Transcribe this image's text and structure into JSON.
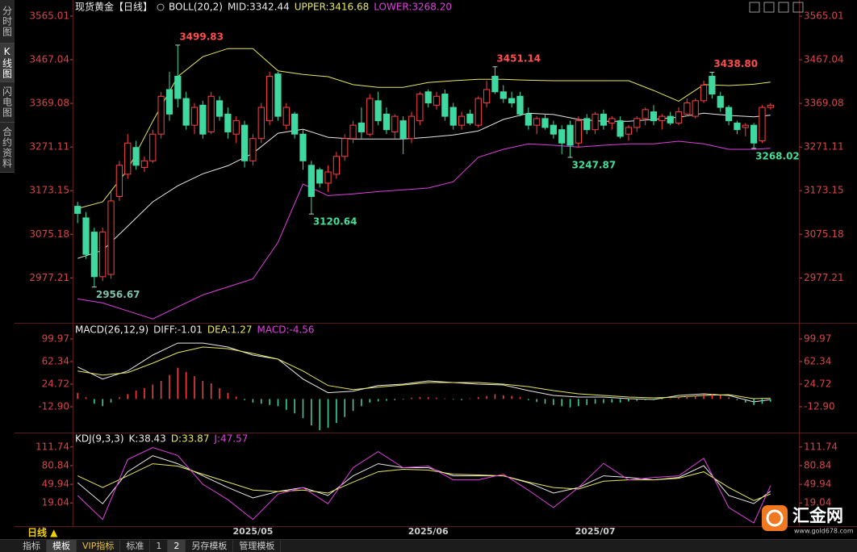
{
  "sidebar": [
    "分时图",
    "K线图",
    "闪电图",
    "合约资料"
  ],
  "toolbar": {
    "period": "日线 ▲",
    "items": [
      "指标",
      "模板",
      "VIP指标",
      "标准",
      "1",
      "2",
      "另存模板",
      "管理模板"
    ]
  },
  "logo": {
    "name": "汇金网",
    "url": "www.gold678.com"
  },
  "chart_data": [
    {
      "type": "candlestick",
      "title": "现货黄金【日线】",
      "indicator": "BOLL(20,2)",
      "up_color": "#ff4040",
      "down_color": "#3fd8a0",
      "xlim": [
        -0.5,
        83.5
      ],
      "ylim": [
        2880,
        3583
      ],
      "yticks": [
        3565.01,
        3467.04,
        3369.08,
        3271.11,
        3173.15,
        3075.18,
        2977.21
      ],
      "open": [
        3138,
        3112,
        3080,
        2980,
        2985,
        3160,
        3210,
        3270,
        3225,
        3240,
        3300,
        3400,
        3430,
        3380,
        3320,
        3365,
        3305,
        3375,
        3345,
        3300,
        3320,
        3240,
        3290,
        3330,
        3435,
        3320,
        3345,
        3300,
        3230,
        3220,
        3190,
        3210,
        3250,
        3290,
        3325,
        3300,
        3375,
        3345,
        3305,
        3330,
        3290,
        3330,
        3395,
        3365,
        3390,
        3360,
        3320,
        3345,
        3320,
        3370,
        3430,
        3395,
        3380,
        3385,
        3345,
        3320,
        3335,
        3320,
        3310,
        3320,
        3280,
        3335,
        3310,
        3345,
        3325,
        3330,
        3300,
        3315,
        3335,
        3350,
        3330,
        3340,
        3325,
        3345,
        3340,
        3375,
        3430,
        3385,
        3360,
        3325,
        3315,
        3320,
        3285,
        3360
      ],
      "high": [
        3148,
        3125,
        3090,
        3090,
        3170,
        3240,
        3300,
        3285,
        3250,
        3310,
        3395,
        3440,
        3499.83,
        3395,
        3370,
        3375,
        3395,
        3385,
        3360,
        3340,
        3330,
        3300,
        3370,
        3440,
        3440,
        3370,
        3350,
        3310,
        3240,
        3225,
        3230,
        3260,
        3300,
        3330,
        3360,
        3390,
        3395,
        3360,
        3345,
        3340,
        3350,
        3395,
        3400,
        3395,
        3400,
        3370,
        3350,
        3355,
        3385,
        3420,
        3451.14,
        3410,
        3395,
        3395,
        3360,
        3340,
        3345,
        3330,
        3320,
        3330,
        3340,
        3345,
        3350,
        3355,
        3340,
        3340,
        3320,
        3340,
        3360,
        3365,
        3345,
        3350,
        3360,
        3380,
        3380,
        3420,
        3438.8,
        3395,
        3365,
        3330,
        3325,
        3325,
        3365,
        3370
      ],
      "low": [
        3100,
        3020,
        2956.67,
        2970,
        2975,
        3150,
        3200,
        3220,
        3215,
        3235,
        3290,
        3330,
        3360,
        3310,
        3300,
        3290,
        3300,
        3330,
        3290,
        3280,
        3225,
        3230,
        3280,
        3320,
        3330,
        3310,
        3290,
        3220,
        3120.64,
        3180,
        3170,
        3200,
        3240,
        3280,
        3290,
        3295,
        3320,
        3300,
        3290,
        3255,
        3280,
        3320,
        3360,
        3355,
        3330,
        3310,
        3310,
        3320,
        3315,
        3360,
        3390,
        3370,
        3360,
        3340,
        3310,
        3300,
        3310,
        3290,
        3255,
        3247.87,
        3270,
        3300,
        3300,
        3310,
        3310,
        3290,
        3285,
        3305,
        3320,
        3320,
        3310,
        3320,
        3320,
        3340,
        3335,
        3370,
        3380,
        3350,
        3320,
        3300,
        3295,
        3268.02,
        3280,
        3355
      ],
      "close": [
        3122,
        3030,
        2980,
        3080,
        3150,
        3230,
        3280,
        3230,
        3240,
        3300,
        3385,
        3345,
        3380,
        3320,
        3360,
        3300,
        3385,
        3340,
        3305,
        3330,
        3240,
        3290,
        3360,
        3430,
        3340,
        3360,
        3300,
        3240,
        3160,
        3190,
        3215,
        3250,
        3290,
        3320,
        3305,
        3380,
        3330,
        3310,
        3340,
        3290,
        3340,
        3390,
        3370,
        3385,
        3340,
        3320,
        3340,
        3325,
        3380,
        3400,
        3395,
        3380,
        3370,
        3345,
        3320,
        3335,
        3315,
        3300,
        3280,
        3275,
        3330,
        3310,
        3345,
        3320,
        3335,
        3295,
        3315,
        3335,
        3355,
        3330,
        3340,
        3325,
        3350,
        3370,
        3375,
        3410,
        3390,
        3360,
        3330,
        3310,
        3320,
        3280,
        3360,
        3365
      ],
      "annotations": [
        {
          "x": 12,
          "label": "3499.83",
          "color": "#ff4d4d"
        },
        {
          "x": 50,
          "label": "3451.14",
          "color": "#ff4d4d"
        },
        {
          "x": 76,
          "label": "3438.80",
          "color": "#ff4d4d"
        },
        {
          "x": 2,
          "label": "2956.67",
          "color": "#7fc0a8"
        },
        {
          "x": 28,
          "label": "3120.64",
          "color": "#44dd99"
        },
        {
          "x": 59,
          "label": "3247.87",
          "color": "#44dd99"
        },
        {
          "x": 81,
          "label": "3268.02",
          "color": "#44dd99"
        }
      ],
      "line_x": [
        0,
        3,
        6,
        9,
        12,
        15,
        18,
        21,
        24,
        27,
        30,
        33,
        36,
        39,
        42,
        45,
        48,
        51,
        54,
        57,
        60,
        63,
        66,
        69,
        72,
        75,
        78,
        81,
        83
      ],
      "series": [
        {
          "name": "MID:3342.44",
          "color": "#e8e8e8",
          "values": [
            3021,
            3039,
            3093,
            3148,
            3184,
            3211,
            3229,
            3257,
            3302,
            3311,
            3293,
            3289,
            3289,
            3289,
            3293,
            3298,
            3307,
            3333,
            3347,
            3344,
            3333,
            3329,
            3329,
            3333,
            3338,
            3347,
            3342,
            3339,
            3342.44
          ]
        },
        {
          "name": "UPPER:3416.68",
          "color": "#e8e85a",
          "values": [
            3133,
            3148,
            3220,
            3329,
            3429,
            3474,
            3492,
            3492,
            3442,
            3434,
            3429,
            3411,
            3405,
            3405,
            3416,
            3420,
            3423,
            3423,
            3421,
            3420,
            3420,
            3420,
            3420,
            3398,
            3374,
            3411,
            3409,
            3412,
            3416.68
          ]
        },
        {
          "name": "LOWER:3268.20",
          "color": "#e040e0",
          "values": [
            2930,
            2921,
            2903,
            2885,
            2912,
            2939,
            2957,
            2975,
            3057,
            3188,
            3162,
            3166,
            3171,
            3175,
            3179,
            3193,
            3248,
            3266,
            3278,
            3275,
            3271,
            3275,
            3278,
            3278,
            3284,
            3278,
            3266,
            3266,
            3268.2
          ]
        }
      ]
    },
    {
      "type": "combo",
      "title": "MACD(26,12,9)",
      "xlim": [
        -0.5,
        83.5
      ],
      "ylim": [
        -54.6,
        124.2
      ],
      "yticks": [
        99.97,
        62.34,
        24.72,
        {
          "value": -12.9,
          "label": "-12.90"
        }
      ],
      "line_x": [
        0,
        3,
        6,
        9,
        12,
        15,
        18,
        21,
        24,
        27,
        30,
        33,
        36,
        39,
        42,
        45,
        48,
        51,
        54,
        57,
        60,
        63,
        66,
        69,
        72,
        75,
        78,
        81,
        83
      ],
      "series": [
        {
          "name": "DIFF:-1.01",
          "color": "#e8e8e8",
          "style": "line",
          "values": [
            53.3,
            33.2,
            46.6,
            73.1,
            93.2,
            93.2,
            86.5,
            73.1,
            66.4,
            33.2,
            10.4,
            13,
            22.4,
            24.7,
            30.1,
            27.4,
            24.7,
            23.4,
            14,
            5.9,
            3.2,
            3.2,
            0.5,
            -0.8,
            5.9,
            8.6,
            5.9,
            -4.9,
            -1.01
          ]
        },
        {
          "name": "DEA:1.27",
          "color": "#e8e85a",
          "style": "line",
          "values": [
            46.6,
            39.9,
            43.9,
            59.7,
            77.1,
            86.5,
            83.8,
            75.8,
            66.4,
            46.6,
            22.4,
            15.7,
            19.8,
            23.4,
            27.4,
            27.4,
            27.4,
            24.7,
            20.6,
            14,
            8.6,
            5.9,
            3.2,
            1.8,
            3.2,
            5.9,
            7.2,
            0.5,
            1.27
          ]
        },
        {
          "name": "MACD:-4.56",
          "color": "#e040e0",
          "style": "bar",
          "up_color": "#ff4040",
          "down_color": "#3fd8a0",
          "values": [
            10,
            3,
            -8,
            -12,
            -6,
            3,
            8,
            14,
            18,
            24,
            30,
            40,
            52,
            45,
            38,
            30,
            26,
            18,
            10,
            4,
            -2,
            -6,
            -8,
            -10,
            -12,
            -18,
            -24,
            -32,
            -44,
            -52,
            -48,
            -40,
            -30,
            -20,
            -12,
            -6,
            -4,
            -3,
            -2,
            -1,
            2,
            3,
            3,
            2,
            1,
            -1,
            -2,
            1,
            3,
            5,
            8,
            6,
            5,
            3,
            -2,
            -5,
            -8,
            -10,
            -12,
            -14,
            -12,
            -10,
            -8,
            -7,
            -6,
            -6,
            -4,
            -3,
            -2,
            -2,
            -1,
            1,
            3,
            5,
            6,
            8,
            8,
            6,
            3,
            -2,
            -6,
            -10,
            -8,
            -4.56
          ]
        }
      ]
    },
    {
      "type": "line",
      "title": "KDJ(9,3,3)",
      "xlim": [
        -0.5,
        83.5
      ],
      "ylim": [
        -19.4,
        132.9
      ],
      "yticks": [
        111.74,
        80.84,
        49.94,
        19.04
      ],
      "xticks": [
        {
          "value": 21,
          "label": "2025/05"
        },
        {
          "value": 42,
          "label": "2025/06"
        },
        {
          "value": 62,
          "label": "2025/07"
        }
      ],
      "line_x": [
        0,
        3,
        6,
        9,
        12,
        15,
        18,
        21,
        24,
        27,
        30,
        33,
        36,
        39,
        42,
        45,
        48,
        51,
        54,
        57,
        60,
        63,
        66,
        69,
        72,
        75,
        78,
        81,
        83
      ],
      "series": [
        {
          "name": "K:38.43",
          "color": "#e8e8e8",
          "style": "line",
          "values": [
            52.6,
            17.7,
            70.7,
            97.2,
            84,
            64,
            44.6,
            27.4,
            38,
            44.6,
            31.4,
            64,
            84,
            77.5,
            77.5,
            64,
            64,
            64,
            52.6,
            35.4,
            44.6,
            64,
            61.3,
            57.3,
            61.3,
            80.8,
            31.4,
            18,
            38.43
          ]
        },
        {
          "name": "D:33.87",
          "color": "#e8e85a",
          "style": "line",
          "values": [
            64,
            44.6,
            64,
            84,
            80,
            66.7,
            53.5,
            40.4,
            38,
            40.4,
            35.4,
            53.5,
            70.7,
            74.8,
            73.5,
            66.7,
            65.4,
            64,
            53.5,
            44.6,
            42,
            55,
            57.3,
            57.3,
            59.9,
            70.7,
            44.6,
            23,
            33.87
          ]
        },
        {
          "name": "J:47.57",
          "color": "#e040e0",
          "style": "line",
          "values": [
            31.4,
            -8.3,
            91,
            110.8,
            97.6,
            50,
            24.4,
            -8.3,
            33.6,
            44.6,
            17.7,
            77.5,
            104,
            77.5,
            80.1,
            57.3,
            57.3,
            66.7,
            40.2,
            11.5,
            44.6,
            84.6,
            57.3,
            61.3,
            64,
            93,
            11.5,
            -14,
            47.57
          ]
        }
      ]
    }
  ]
}
